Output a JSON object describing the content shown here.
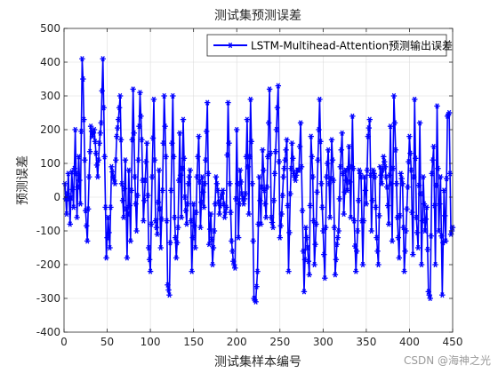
{
  "chart_data": {
    "type": "line",
    "title": "测试集预测误差",
    "xlabel": "测试集样本编号",
    "ylabel": "预测误差",
    "xlim": [
      0,
      450
    ],
    "ylim": [
      -400,
      500
    ],
    "xticks": [
      0,
      50,
      100,
      150,
      200,
      250,
      300,
      350,
      400,
      450
    ],
    "yticks": [
      -400,
      -300,
      -200,
      -100,
      0,
      100,
      200,
      300,
      400,
      500
    ],
    "grid": true,
    "legend_position": "top-right",
    "series": [
      {
        "name": "LSTM-Multihead-Attention预测输出误差",
        "color": "#0000ff",
        "marker": "asterisk",
        "keypoints": [
          [
            1,
            40
          ],
          [
            3,
            -50
          ],
          [
            5,
            70
          ],
          [
            7,
            -80
          ],
          [
            9,
            75
          ],
          [
            11,
            -30
          ],
          [
            13,
            200
          ],
          [
            15,
            -60
          ],
          [
            17,
            120
          ],
          [
            19,
            -20
          ],
          [
            21,
            410
          ],
          [
            22,
            350
          ],
          [
            24,
            110
          ],
          [
            25,
            -40
          ],
          [
            27,
            -130
          ],
          [
            29,
            60
          ],
          [
            31,
            210
          ],
          [
            33,
            180
          ],
          [
            35,
            200
          ],
          [
            37,
            130
          ],
          [
            39,
            60
          ],
          [
            41,
            160
          ],
          [
            43,
            220
          ],
          [
            45,
            410
          ],
          [
            47,
            120
          ],
          [
            49,
            -180
          ],
          [
            51,
            -60
          ],
          [
            53,
            -150
          ],
          [
            55,
            90
          ],
          [
            57,
            60
          ],
          [
            59,
            40
          ],
          [
            61,
            180
          ],
          [
            63,
            230
          ],
          [
            65,
            300
          ],
          [
            67,
            40
          ],
          [
            69,
            -60
          ],
          [
            71,
            110
          ],
          [
            73,
            -180
          ],
          [
            75,
            80
          ],
          [
            77,
            -130
          ],
          [
            80,
            320
          ],
          [
            82,
            60
          ],
          [
            84,
            -100
          ],
          [
            86,
            110
          ],
          [
            88,
            310
          ],
          [
            90,
            170
          ],
          [
            92,
            -70
          ],
          [
            94,
            50
          ],
          [
            96,
            160
          ],
          [
            98,
            -150
          ],
          [
            100,
            -220
          ],
          [
            102,
            60
          ],
          [
            104,
            290
          ],
          [
            106,
            -70
          ],
          [
            108,
            -110
          ],
          [
            110,
            80
          ],
          [
            112,
            -150
          ],
          [
            114,
            20
          ],
          [
            116,
            300
          ],
          [
            118,
            120
          ],
          [
            120,
            -260
          ],
          [
            122,
            -290
          ],
          [
            124,
            20
          ],
          [
            126,
            300
          ],
          [
            128,
            -60
          ],
          [
            130,
            -180
          ],
          [
            132,
            -90
          ],
          [
            134,
            190
          ],
          [
            136,
            -60
          ],
          [
            138,
            230
          ],
          [
            140,
            0
          ],
          [
            142,
            -80
          ],
          [
            144,
            40
          ],
          [
            146,
            80
          ],
          [
            148,
            -220
          ],
          [
            150,
            -20
          ],
          [
            152,
            -150
          ],
          [
            154,
            60
          ],
          [
            156,
            180
          ],
          [
            158,
            -90
          ],
          [
            160,
            60
          ],
          [
            162,
            -30
          ],
          [
            164,
            110
          ],
          [
            166,
            280
          ],
          [
            168,
            -140
          ],
          [
            170,
            -50
          ],
          [
            172,
            -200
          ],
          [
            174,
            -100
          ],
          [
            176,
            60
          ],
          [
            178,
            20
          ],
          [
            180,
            -50
          ],
          [
            182,
            0
          ],
          [
            184,
            20
          ],
          [
            186,
            -60
          ],
          [
            188,
            -30
          ],
          [
            190,
            280
          ],
          [
            192,
            40
          ],
          [
            194,
            -130
          ],
          [
            196,
            -190
          ],
          [
            198,
            -210
          ],
          [
            200,
            200
          ],
          [
            202,
            -120
          ],
          [
            204,
            80
          ],
          [
            206,
            10
          ],
          [
            208,
            -20
          ],
          [
            210,
            10
          ],
          [
            212,
            230
          ],
          [
            214,
            -50
          ],
          [
            216,
            290
          ],
          [
            218,
            40
          ],
          [
            220,
            -300
          ],
          [
            222,
            -310
          ],
          [
            224,
            -220
          ],
          [
            226,
            60
          ],
          [
            228,
            -80
          ],
          [
            230,
            140
          ],
          [
            232,
            20
          ],
          [
            234,
            -60
          ],
          [
            236,
            120
          ],
          [
            238,
            320
          ],
          [
            240,
            -60
          ],
          [
            242,
            -90
          ],
          [
            244,
            70
          ],
          [
            246,
            200
          ],
          [
            248,
            330
          ],
          [
            250,
            -120
          ],
          [
            252,
            -50
          ],
          [
            254,
            60
          ],
          [
            256,
            110
          ],
          [
            258,
            170
          ],
          [
            260,
            -220
          ],
          [
            262,
            10
          ],
          [
            264,
            160
          ],
          [
            266,
            70
          ],
          [
            268,
            50
          ],
          [
            270,
            80
          ],
          [
            272,
            80
          ],
          [
            274,
            220
          ],
          [
            276,
            -40
          ],
          [
            278,
            -280
          ],
          [
            280,
            -90
          ],
          [
            282,
            -150
          ],
          [
            284,
            -230
          ],
          [
            286,
            180
          ],
          [
            288,
            60
          ],
          [
            290,
            -200
          ],
          [
            292,
            -80
          ],
          [
            294,
            110
          ],
          [
            296,
            290
          ],
          [
            298,
            40
          ],
          [
            300,
            -100
          ],
          [
            302,
            -240
          ],
          [
            304,
            60
          ],
          [
            306,
            140
          ],
          [
            308,
            -60
          ],
          [
            310,
            170
          ],
          [
            312,
            50
          ],
          [
            314,
            -230
          ],
          [
            316,
            -140
          ],
          [
            318,
            -100
          ],
          [
            320,
            90
          ],
          [
            322,
            190
          ],
          [
            324,
            -50
          ],
          [
            326,
            80
          ],
          [
            328,
            20
          ],
          [
            330,
            150
          ],
          [
            332,
            -60
          ],
          [
            334,
            240
          ],
          [
            336,
            -70
          ],
          [
            338,
            -220
          ],
          [
            340,
            -100
          ],
          [
            342,
            80
          ],
          [
            344,
            60
          ],
          [
            346,
            -200
          ],
          [
            348,
            60
          ],
          [
            350,
            -20
          ],
          [
            352,
            180
          ],
          [
            354,
            230
          ],
          [
            356,
            -100
          ],
          [
            358,
            80
          ],
          [
            360,
            60
          ],
          [
            362,
            -120
          ],
          [
            364,
            -200
          ],
          [
            366,
            90
          ],
          [
            368,
            40
          ],
          [
            370,
            120
          ],
          [
            372,
            90
          ],
          [
            374,
            30
          ],
          [
            376,
            -80
          ],
          [
            378,
            210
          ],
          [
            380,
            -130
          ],
          [
            382,
            300
          ],
          [
            384,
            140
          ],
          [
            386,
            -60
          ],
          [
            388,
            -180
          ],
          [
            390,
            70
          ],
          [
            392,
            40
          ],
          [
            394,
            -220
          ],
          [
            396,
            -100
          ],
          [
            398,
            30
          ],
          [
            400,
            180
          ],
          [
            402,
            80
          ],
          [
            404,
            -170
          ],
          [
            406,
            290
          ],
          [
            408,
            -60
          ],
          [
            410,
            -150
          ],
          [
            412,
            220
          ],
          [
            414,
            -200
          ],
          [
            416,
            60
          ],
          [
            418,
            -100
          ],
          [
            420,
            -30
          ],
          [
            422,
            -280
          ],
          [
            424,
            -300
          ],
          [
            426,
            70
          ],
          [
            428,
            150
          ],
          [
            430,
            -200
          ],
          [
            432,
            270
          ],
          [
            434,
            -100
          ],
          [
            436,
            60
          ],
          [
            438,
            -290
          ],
          [
            440,
            20
          ],
          [
            442,
            -130
          ],
          [
            444,
            240
          ],
          [
            446,
            250
          ],
          [
            448,
            -110
          ],
          [
            450,
            -90
          ]
        ]
      }
    ]
  },
  "watermark": "CSDN @海神之光"
}
